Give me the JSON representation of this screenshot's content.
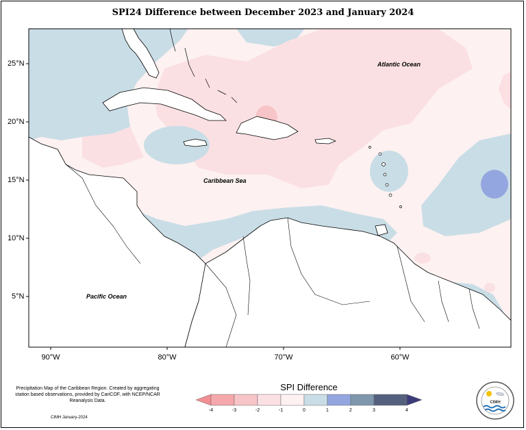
{
  "title": "SPI24 Difference between December 2023 and January 2024",
  "map": {
    "lat_labels": [
      "25°N",
      "20°N",
      "15°N",
      "10°N",
      "5°N"
    ],
    "lon_labels": [
      "90°W",
      "80°W",
      "70°W",
      "60°W"
    ],
    "ocean_labels": {
      "atlantic": "Atlantic Ocean",
      "caribbean": "Caribbean Sea",
      "pacific": "Pacific Ocean"
    }
  },
  "legend": {
    "title": "SPI Difference",
    "ticks": [
      "-4",
      "-3",
      "-2",
      "-1",
      "0",
      "1",
      "2",
      "3",
      "4"
    ],
    "colors": [
      "#f28f93",
      "#f5a8ab",
      "#f7c4c7",
      "#fbe0e3",
      "#fdf1f1",
      "#c9dde6",
      "#94a6df",
      "#7f97ad",
      "#55607f",
      "#3c3b7a"
    ]
  },
  "footer": {
    "description": "Precipitation Map of the Caribbean Region. Created by aggregating station based observations, provided by CariCOF, with NCEP/NCAR Reanalysis Data.",
    "credit": "CIMH January-2024"
  },
  "logo": {
    "name": "CIMH",
    "icon": "cimh-seal-icon"
  }
}
